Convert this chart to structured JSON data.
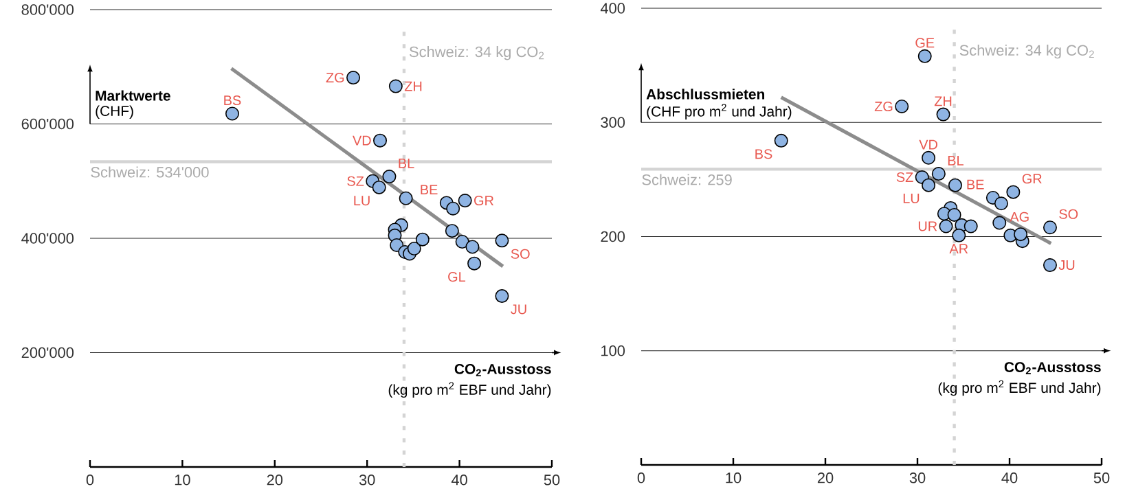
{
  "chart_data": [
    {
      "type": "scatter",
      "ylabel": "Marktwerte",
      "xlabel": "CO$_{2}$-Ausstoss",
      "annotations": [
        "(CHF)",
        "(kg pro m$^{2}$ EBF und Jahr)",
        {
          "text": "BS",
          "x": 15.4,
          "y": 618000
        },
        {
          "text": "ZG",
          "x": 28.5,
          "y": 681000
        },
        {
          "text": "ZH",
          "x": 33.1,
          "y": 666000
        },
        {
          "text": "VD",
          "x": 31.4,
          "y": 571000
        },
        {
          "text": "SZ",
          "x": 30.6,
          "y": 500000
        },
        {
          "text": "BL",
          "x": 32.4,
          "y": 508000
        },
        {
          "text": "LU",
          "x": 31.3,
          "y": 489000
        },
        {
          "text": "BE",
          "x": 38.6,
          "y": 462000
        },
        {
          "text": "GR",
          "x": 40.6,
          "y": 466000
        },
        {
          "text": "SO",
          "x": 44.6,
          "y": 396000
        },
        {
          "text": "GL",
          "x": 41.6,
          "y": 356000
        },
        {
          "text": "JU",
          "x": 44.6,
          "y": 299000
        }
      ],
      "series": [
        {
          "color": "#8fb4e3",
          "x": [
            15.4,
            28.5,
            33.1,
            31.4,
            30.6,
            32.4,
            31.3,
            34.2,
            38.6,
            39.3,
            40.6,
            33.7,
            33.0,
            33.0,
            33.2,
            34.1,
            34.6,
            35.1,
            36.0,
            39.2,
            40.3,
            41.4,
            41.6,
            44.6,
            44.6
          ],
          "values": [
            618000,
            681000,
            666000,
            571000,
            500000,
            508000,
            489000,
            470000,
            462000,
            452000,
            466000,
            423000,
            415000,
            405000,
            388000,
            376000,
            373000,
            382000,
            398000,
            413000,
            394000,
            385000,
            356000,
            396000,
            299000
          ]
        },
        {
          "type": "line",
          "marker": "none",
          "color": "#8c8c8c",
          "x": [
            15.3,
            44.7
          ],
          "values": [
            697000,
            351000
          ]
        }
      ],
      "marker": "circle",
      "line_style": "solid",
      "grid": "y",
      "xlim": [
        0,
        50
      ],
      "ylim": [
        0,
        800000
      ],
      "xticks": [
        0,
        10,
        20,
        30,
        40,
        50
      ],
      "yticks": [
        {
          "value": 200000,
          "label": "200'000"
        },
        {
          "value": 400000,
          "label": "400'000"
        },
        {
          "value": 600000,
          "label": "600'000"
        },
        {
          "value": 800000,
          "label": "800'000"
        }
      ],
      "ref_lines": [
        {
          "axis": "y",
          "value": 534000,
          "label": "Schweiz: 534'000",
          "color": "#d4d4d4",
          "line_style": "solid"
        },
        {
          "axis": "x",
          "value": 34,
          "label": "Schweiz: 34 kg CO$_{2}$",
          "color": "#d4d4d4",
          "line_style": "dotted"
        }
      ]
    },
    {
      "type": "scatter",
      "ylabel": "Abschlussmieten",
      "xlabel": "CO$_{2}$-Ausstoss",
      "annotations": [
        "(CHF pro m$^{2}$ und Jahr)",
        "(kg pro m$^{2}$ EBF und Jahr)",
        {
          "text": "GE",
          "x": 30.8,
          "y": 358
        },
        {
          "text": "ZG",
          "x": 28.3,
          "y": 314
        },
        {
          "text": "ZH",
          "x": 32.8,
          "y": 307
        },
        {
          "text": "BS",
          "x": 15.2,
          "y": 284
        },
        {
          "text": "VD",
          "x": 31.2,
          "y": 269
        },
        {
          "text": "BL",
          "x": 32.3,
          "y": 255
        },
        {
          "text": "SZ",
          "x": 30.5,
          "y": 252
        },
        {
          "text": "LU",
          "x": 31.2,
          "y": 245
        },
        {
          "text": "BE",
          "x": 38.2,
          "y": 234
        },
        {
          "text": "GR",
          "x": 40.4,
          "y": 239
        },
        {
          "text": "AG",
          "x": 39.1,
          "y": 229
        },
        {
          "text": "SO",
          "x": 44.4,
          "y": 208
        },
        {
          "text": "UR",
          "x": 33.1,
          "y": 209
        },
        {
          "text": "AR",
          "x": 34.5,
          "y": 201
        },
        {
          "text": "JU",
          "x": 44.4,
          "y": 175
        }
      ],
      "series": [
        {
          "color": "#8fb4e3",
          "x": [
            30.8,
            28.3,
            32.8,
            15.2,
            31.2,
            32.3,
            30.5,
            31.2,
            34.1,
            38.2,
            39.1,
            40.4,
            33.6,
            32.9,
            34.0,
            33.1,
            34.8,
            35.8,
            34.5,
            38.9,
            40.1,
            41.4,
            41.2,
            44.4,
            44.4
          ],
          "values": [
            358,
            314,
            307,
            284,
            269,
            255,
            252,
            245,
            245,
            234,
            229,
            239,
            225,
            220,
            219,
            209,
            210,
            209,
            201,
            212,
            201,
            196,
            202,
            208,
            175
          ]
        },
        {
          "type": "line",
          "marker": "none",
          "color": "#8c8c8c",
          "x": [
            15.2,
            44.5
          ],
          "values": [
            322,
            194
          ]
        }
      ],
      "marker": "circle",
      "line_style": "solid",
      "grid": "y",
      "xlim": [
        0,
        50
      ],
      "ylim": [
        0,
        400
      ],
      "xticks": [
        0,
        10,
        20,
        30,
        40,
        50
      ],
      "yticks": [
        100,
        200,
        300,
        400
      ],
      "ref_lines": [
        {
          "axis": "y",
          "value": 259,
          "label": "Schweiz: 259",
          "color": "#d4d4d4",
          "line_style": "solid"
        },
        {
          "axis": "x",
          "value": 34,
          "label": "Schweiz: 34 kg CO$_{2}$",
          "color": "#d4d4d4",
          "line_style": "dotted"
        }
      ]
    }
  ]
}
